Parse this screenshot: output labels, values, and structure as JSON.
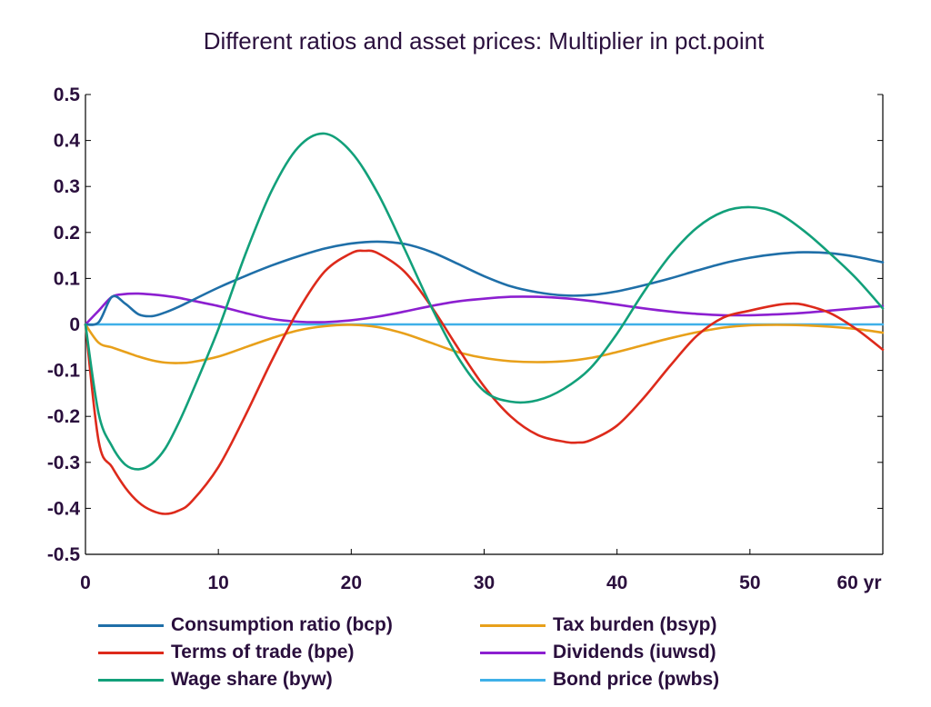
{
  "chart_data": {
    "type": "line",
    "title": "Different ratios and asset prices: Multiplier in pct.point",
    "xlabel": "",
    "ylabel": "",
    "xlim": [
      0,
      60
    ],
    "ylim": [
      -0.5,
      0.5
    ],
    "x_ticks": [
      0,
      10,
      20,
      30,
      40,
      50,
      60
    ],
    "x_tick_labels": [
      "0",
      "10",
      "20",
      "30",
      "40",
      "50",
      "60 yr"
    ],
    "y_ticks": [
      0.5,
      0.4,
      0.3,
      0.2,
      0.1,
      0,
      -0.1,
      -0.2,
      -0.3,
      -0.4,
      -0.5
    ],
    "y_tick_labels": [
      "0.5",
      "0.4",
      "0.3",
      "0.2",
      "0.1",
      "0",
      "-0.1",
      "-0.2",
      "-0.3",
      "-0.4",
      "-0.5"
    ],
    "grid": false,
    "legend_position": "bottom",
    "series": [
      {
        "name": "Consumption ratio (bcp)",
        "color": "#1f6fa8",
        "x": [
          0,
          1,
          2,
          3,
          4,
          5,
          6,
          7,
          8,
          10,
          12,
          14,
          16,
          18,
          20,
          22,
          24,
          26,
          28,
          30,
          32,
          34,
          36,
          38,
          40,
          42,
          44,
          46,
          48,
          50,
          52,
          54,
          56,
          58,
          60
        ],
        "y": [
          0,
          0.005,
          0.06,
          0.045,
          0.022,
          0.018,
          0.026,
          0.038,
          0.052,
          0.08,
          0.105,
          0.128,
          0.148,
          0.165,
          0.176,
          0.18,
          0.175,
          0.158,
          0.132,
          0.105,
          0.083,
          0.07,
          0.063,
          0.064,
          0.072,
          0.085,
          0.1,
          0.117,
          0.133,
          0.145,
          0.153,
          0.157,
          0.155,
          0.147,
          0.135
        ]
      },
      {
        "name": "Terms of trade (bpe)",
        "color": "#dd2a1b",
        "x": [
          0,
          1,
          2,
          3,
          4,
          5,
          6,
          7,
          8,
          10,
          12,
          14,
          16,
          18,
          20,
          21,
          22,
          24,
          26,
          28,
          30,
          32,
          34,
          36,
          37,
          38,
          40,
          42,
          44,
          46,
          48,
          50,
          52,
          53,
          54,
          56,
          58,
          60
        ],
        "y": [
          0,
          -0.255,
          -0.31,
          -0.355,
          -0.387,
          -0.405,
          -0.412,
          -0.405,
          -0.385,
          -0.31,
          -0.2,
          -0.08,
          0.03,
          0.115,
          0.155,
          0.16,
          0.155,
          0.115,
          0.04,
          -0.05,
          -0.135,
          -0.2,
          -0.24,
          -0.255,
          -0.257,
          -0.252,
          -0.22,
          -0.16,
          -0.09,
          -0.025,
          0.015,
          0.03,
          0.042,
          0.045,
          0.043,
          0.025,
          -0.01,
          -0.055
        ]
      },
      {
        "name": "Wage share (byw)",
        "color": "#12a07a",
        "x": [
          0,
          1,
          2,
          3,
          4,
          5,
          6,
          7,
          8,
          10,
          12,
          14,
          16,
          18,
          20,
          22,
          24,
          26,
          28,
          30,
          32,
          34,
          36,
          38,
          40,
          42,
          44,
          46,
          48,
          50,
          52,
          54,
          56,
          58,
          60
        ],
        "y": [
          0,
          -0.195,
          -0.265,
          -0.305,
          -0.315,
          -0.303,
          -0.27,
          -0.215,
          -0.15,
          -0.01,
          0.15,
          0.29,
          0.385,
          0.415,
          0.375,
          0.285,
          0.165,
          0.04,
          -0.07,
          -0.145,
          -0.168,
          -0.165,
          -0.14,
          -0.095,
          -0.02,
          0.07,
          0.15,
          0.21,
          0.245,
          0.255,
          0.243,
          0.205,
          0.155,
          0.1,
          0.035
        ]
      },
      {
        "name": "Tax burden (bsyp)",
        "color": "#e8a01a",
        "x": [
          0,
          1,
          2,
          3,
          4,
          5,
          6,
          7,
          8,
          10,
          12,
          14,
          16,
          18,
          20,
          22,
          24,
          26,
          28,
          30,
          32,
          34,
          36,
          38,
          40,
          42,
          44,
          46,
          48,
          50,
          52,
          54,
          56,
          58,
          60
        ],
        "y": [
          0,
          -0.04,
          -0.05,
          -0.06,
          -0.07,
          -0.078,
          -0.083,
          -0.084,
          -0.082,
          -0.07,
          -0.05,
          -0.03,
          -0.013,
          -0.004,
          -0.001,
          -0.006,
          -0.02,
          -0.04,
          -0.06,
          -0.073,
          -0.08,
          -0.082,
          -0.08,
          -0.073,
          -0.06,
          -0.045,
          -0.03,
          -0.017,
          -0.007,
          -0.002,
          -0.001,
          -0.002,
          -0.005,
          -0.01,
          -0.018
        ]
      },
      {
        "name": "Dividends (iuwsd)",
        "color": "#8c1fd0",
        "x": [
          0,
          1,
          2,
          3,
          4,
          5,
          6,
          7,
          8,
          10,
          12,
          14,
          16,
          18,
          20,
          22,
          24,
          26,
          28,
          30,
          32,
          34,
          36,
          38,
          40,
          42,
          44,
          46,
          48,
          50,
          52,
          54,
          56,
          58,
          60
        ],
        "y": [
          0,
          0.03,
          0.06,
          0.066,
          0.067,
          0.065,
          0.062,
          0.058,
          0.052,
          0.04,
          0.025,
          0.012,
          0.006,
          0.005,
          0.009,
          0.017,
          0.028,
          0.04,
          0.05,
          0.056,
          0.06,
          0.06,
          0.057,
          0.051,
          0.043,
          0.035,
          0.028,
          0.023,
          0.02,
          0.02,
          0.022,
          0.025,
          0.03,
          0.035,
          0.04
        ]
      },
      {
        "name": "Bond price (pwbs)",
        "color": "#3fb0e8",
        "x": [
          0,
          10,
          20,
          30,
          40,
          50,
          60
        ],
        "y": [
          0,
          0,
          0,
          0,
          0,
          0,
          0
        ]
      }
    ]
  },
  "legend_items": [
    {
      "label": "Consumption ratio (bcp)",
      "color": "#1f6fa8"
    },
    {
      "label": "Tax burden (bsyp)",
      "color": "#e8a01a"
    },
    {
      "label": "Terms of trade (bpe)",
      "color": "#dd2a1b"
    },
    {
      "label": "Dividends (iuwsd)",
      "color": "#8c1fd0"
    },
    {
      "label": "Wage share (byw)",
      "color": "#12a07a"
    },
    {
      "label": "Bond price (pwbs)",
      "color": "#3fb0e8"
    }
  ]
}
